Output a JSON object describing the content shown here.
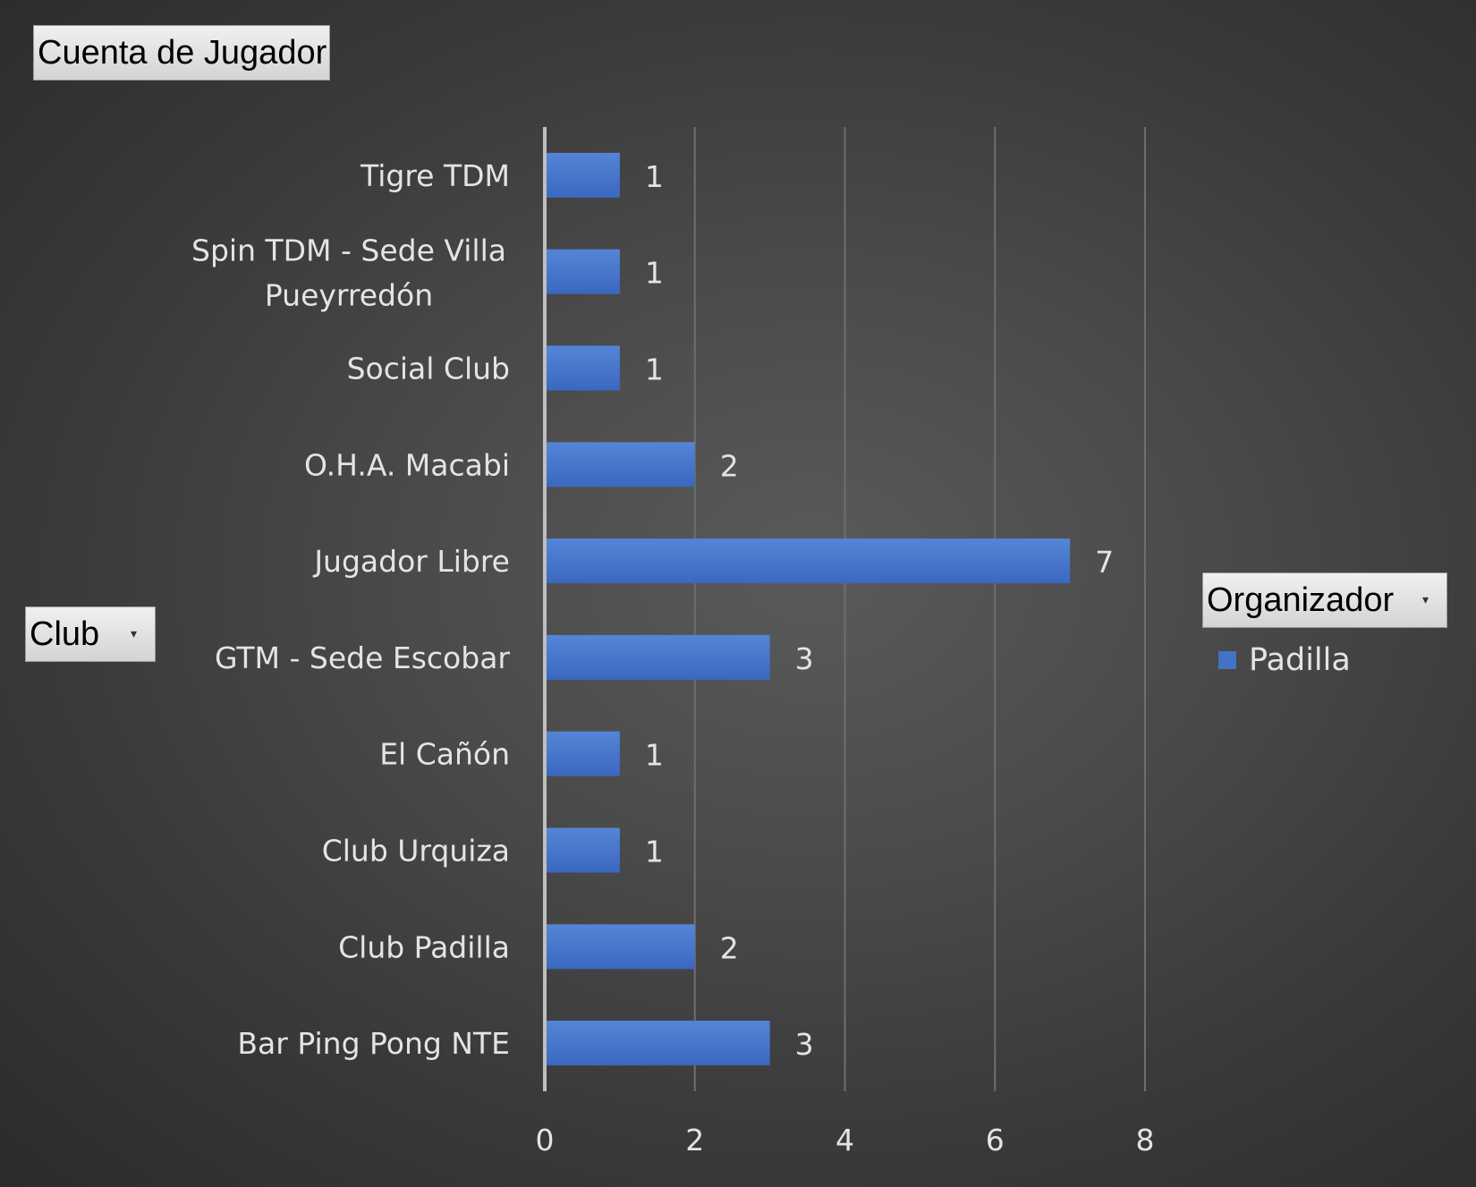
{
  "chart_data": {
    "type": "bar",
    "orientation": "horizontal",
    "title": "",
    "xlabel": "",
    "ylabel": "",
    "categories": [
      "Bar Ping Pong NTE",
      "Club Padilla",
      "Club Urquiza",
      "El Cañón",
      "GTM - Sede Escobar",
      "Jugador Libre",
      "O.H.A. Macabi",
      "Social Club",
      "Spin TDM - Sede Villa Pueyrredón",
      "Tigre TDM"
    ],
    "series": [
      {
        "name": "Padilla",
        "color": "#4472c4",
        "values": [
          3,
          2,
          1,
          1,
          3,
          7,
          2,
          1,
          1,
          1
        ]
      }
    ],
    "xlim": [
      0,
      8
    ],
    "xticks": [
      0,
      2,
      4,
      6,
      8
    ],
    "grid": true,
    "data_labels": true,
    "legend_position": "right"
  },
  "pivot_fields": {
    "value_field": "Cuenta de Jugador",
    "row_field": "Club",
    "legend_field": "Organizador"
  },
  "colors": {
    "bar": "#4472c4",
    "background": "#404040",
    "text": "#e4e4e4",
    "gridline": "#6e6e6e"
  }
}
